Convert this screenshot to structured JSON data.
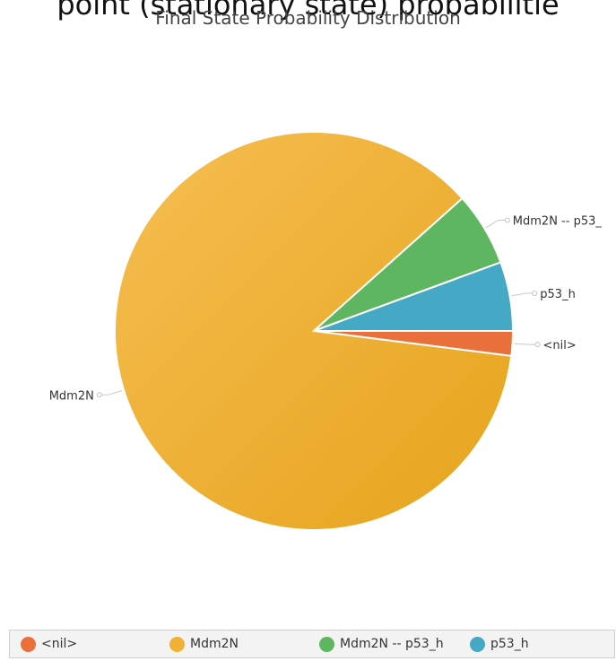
{
  "page": {
    "header_text": "point (stationary state) probabilitie"
  },
  "chart_data": {
    "type": "pie",
    "title": "Final State Probability Distribution",
    "legend_placement": "bottom",
    "slices": [
      {
        "name": "<nil>",
        "value": 2.0,
        "color": "#e9703a"
      },
      {
        "name": "Mdm2N",
        "value": 86.4,
        "color": "#f0b236"
      },
      {
        "name": "Mdm2N -- p53_h",
        "value": 6.0,
        "color": "#5eb660"
      },
      {
        "name": "p53_h",
        "value": 5.6,
        "color": "#45a9c6"
      }
    ],
    "slice_labels": [
      "<nil>",
      "Mdm2N",
      "Mdm2N -- p53_",
      "p53_h"
    ]
  }
}
